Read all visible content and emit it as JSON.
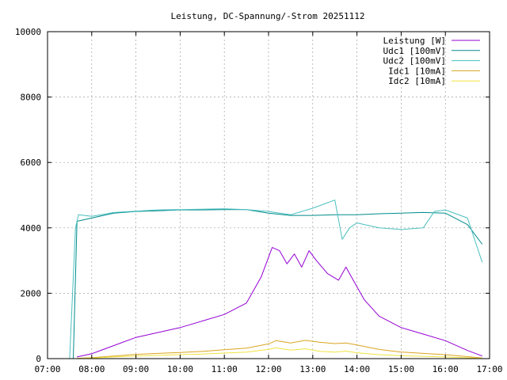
{
  "chart_data": {
    "type": "line",
    "title": "Leistung, DC-Spannung/-Strom 20251112",
    "xlabel": "",
    "ylabel": "",
    "xlim": [
      "07:00",
      "17:00"
    ],
    "ylim": [
      0,
      10000
    ],
    "x_ticks": [
      "07:00",
      "08:00",
      "09:00",
      "10:00",
      "11:00",
      "12:00",
      "13:00",
      "14:00",
      "15:00",
      "16:00",
      "17:00"
    ],
    "y_ticks": [
      "0",
      "2000",
      "4000",
      "6000",
      "8000",
      "10000"
    ],
    "grid": true,
    "legend_position": "top-right",
    "series": [
      {
        "name": "Leistung [W]",
        "color": "#9400d3",
        "x": [
          "07:40",
          "08:00",
          "08:30",
          "09:00",
          "09:30",
          "10:00",
          "10:30",
          "11:00",
          "11:30",
          "11:50",
          "12:05",
          "12:15",
          "12:25",
          "12:35",
          "12:45",
          "12:55",
          "13:05",
          "13:20",
          "13:35",
          "13:45",
          "13:55",
          "14:10",
          "14:30",
          "15:00",
          "15:30",
          "16:00",
          "16:30",
          "16:50"
        ],
        "values": [
          50,
          150,
          400,
          650,
          800,
          950,
          1150,
          1350,
          1700,
          2500,
          3400,
          3300,
          2900,
          3200,
          2800,
          3300,
          3000,
          2600,
          2400,
          2800,
          2400,
          1800,
          1300,
          950,
          750,
          550,
          250,
          80
        ]
      },
      {
        "name": "Udc1 [100mV]",
        "color": "#008b8b",
        "x": [
          "07:35",
          "07:40",
          "08:00",
          "08:30",
          "09:00",
          "09:30",
          "10:00",
          "10:30",
          "11:00",
          "11:30",
          "12:00",
          "12:30",
          "13:00",
          "13:30",
          "14:00",
          "14:30",
          "15:00",
          "15:30",
          "16:00",
          "16:30",
          "16:50"
        ],
        "values": [
          0,
          4200,
          4300,
          4450,
          4500,
          4520,
          4550,
          4550,
          4560,
          4560,
          4450,
          4380,
          4380,
          4400,
          4400,
          4430,
          4450,
          4470,
          4450,
          4100,
          3500
        ]
      },
      {
        "name": "Udc2 [100mV]",
        "color": "#4cbfbf",
        "x": [
          "07:30",
          "07:38",
          "07:42",
          "08:00",
          "08:30",
          "09:00",
          "09:30",
          "10:00",
          "10:30",
          "11:00",
          "11:30",
          "12:00",
          "12:30",
          "13:00",
          "13:30",
          "13:40",
          "13:50",
          "14:00",
          "14:30",
          "15:00",
          "15:30",
          "15:45",
          "16:00",
          "16:30",
          "16:50"
        ],
        "values": [
          0,
          4000,
          4400,
          4350,
          4470,
          4510,
          4550,
          4560,
          4570,
          4580,
          4560,
          4500,
          4400,
          4600,
          4850,
          3650,
          4000,
          4150,
          4000,
          3950,
          4000,
          4500,
          4550,
          4300,
          2950
        ]
      },
      {
        "name": "Idc1 [10mA]",
        "color": "#daa520",
        "x": [
          "07:40",
          "08:00",
          "08:30",
          "09:00",
          "09:30",
          "10:00",
          "10:30",
          "11:00",
          "11:30",
          "12:00",
          "12:10",
          "12:30",
          "12:50",
          "13:10",
          "13:30",
          "13:45",
          "14:00",
          "14:30",
          "15:00",
          "15:30",
          "16:00",
          "16:30",
          "16:50"
        ],
        "values": [
          10,
          30,
          80,
          130,
          160,
          190,
          220,
          270,
          320,
          450,
          550,
          480,
          560,
          500,
          460,
          480,
          420,
          280,
          200,
          160,
          120,
          60,
          20
        ]
      },
      {
        "name": "Idc2 [10mA]",
        "color": "#f0e442",
        "x": [
          "07:40",
          "08:00",
          "08:30",
          "09:00",
          "09:30",
          "10:00",
          "10:30",
          "11:00",
          "11:30",
          "12:00",
          "12:10",
          "12:30",
          "12:50",
          "13:10",
          "13:30",
          "13:45",
          "14:00",
          "14:30",
          "15:00",
          "15:30",
          "16:00",
          "16:30",
          "16:50"
        ],
        "values": [
          5,
          20,
          50,
          80,
          100,
          120,
          140,
          170,
          200,
          280,
          330,
          260,
          300,
          220,
          200,
          230,
          180,
          120,
          90,
          70,
          50,
          25,
          10
        ]
      }
    ]
  }
}
